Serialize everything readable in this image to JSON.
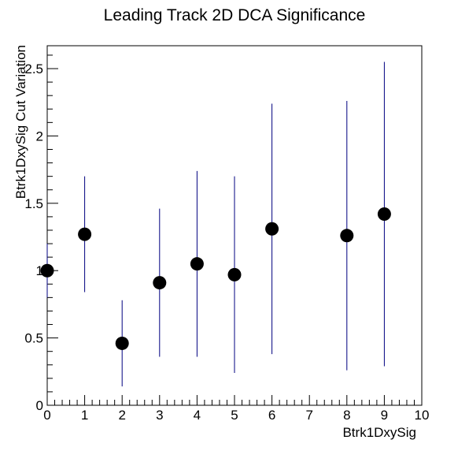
{
  "chart_data": {
    "type": "scatter",
    "title": "Leading Track 2D DCA Significance",
    "xlabel": "Btrk1DxySig",
    "ylabel": "Btrk1DxySig Cut Variation",
    "xlim": [
      0,
      10
    ],
    "ylim": [
      0,
      2.67
    ],
    "x_ticks": [
      0,
      1,
      2,
      3,
      4,
      5,
      6,
      7,
      8,
      9,
      10
    ],
    "x_tick_labels": [
      "0",
      "1",
      "2",
      "3",
      "4",
      "5",
      "6",
      "7",
      "8",
      "9",
      "10"
    ],
    "y_ticks": [
      0,
      0.5,
      1,
      1.5,
      2,
      2.5
    ],
    "y_tick_labels": [
      "0",
      "0.5",
      "1",
      "1.5",
      "2",
      "2.5"
    ],
    "grid": false,
    "marker_color": "#000000",
    "error_bar_color": "#000080",
    "series": [
      {
        "points": [
          {
            "x": 0,
            "y": 1.0,
            "err_low": 0.2,
            "err_high": 0.2
          },
          {
            "x": 1,
            "y": 1.27,
            "err_low": 0.43,
            "err_high": 0.43
          },
          {
            "x": 2,
            "y": 0.46,
            "err_low": 0.32,
            "err_high": 0.32
          },
          {
            "x": 3,
            "y": 0.91,
            "err_low": 0.55,
            "err_high": 0.55
          },
          {
            "x": 4,
            "y": 1.05,
            "err_low": 0.69,
            "err_high": 0.69
          },
          {
            "x": 5,
            "y": 0.97,
            "err_low": 0.73,
            "err_high": 0.73
          },
          {
            "x": 6,
            "y": 1.31,
            "err_low": 0.93,
            "err_high": 0.93
          },
          {
            "x": 8,
            "y": 1.26,
            "err_low": 1.0,
            "err_high": 1.0
          },
          {
            "x": 9,
            "y": 1.42,
            "err_low": 1.13,
            "err_high": 1.13
          }
        ]
      }
    ]
  }
}
